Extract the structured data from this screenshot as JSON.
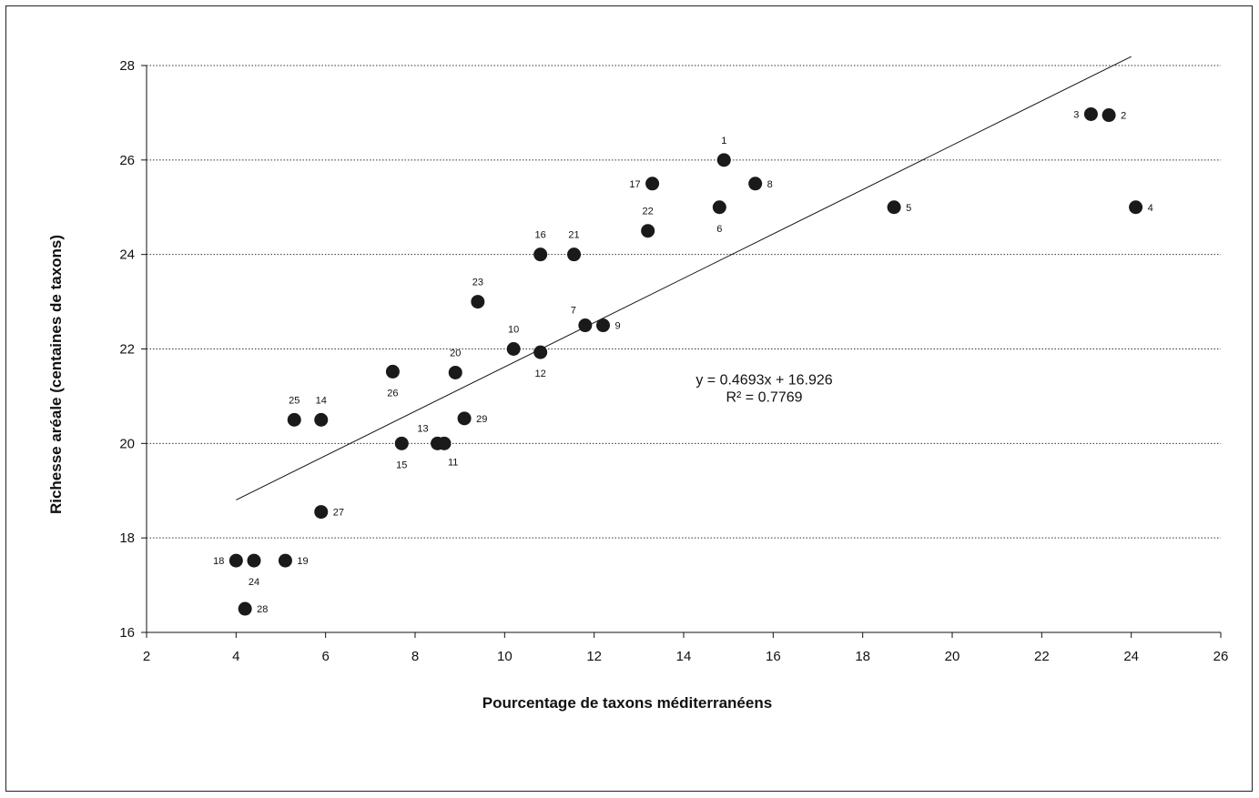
{
  "chart_data": {
    "type": "scatter",
    "title": "",
    "xlabel": "Pourcentage de taxons méditerranéens",
    "ylabel": "Richesse aréale (centaines de taxons)",
    "xlim": [
      2,
      26
    ],
    "ylim": [
      16,
      28
    ],
    "x_ticks": [
      2,
      4,
      6,
      8,
      10,
      12,
      14,
      16,
      18,
      20,
      22,
      24,
      26
    ],
    "y_ticks": [
      16,
      18,
      20,
      22,
      24,
      26,
      28
    ],
    "grid": "horizontal-dotted",
    "marker_color": "#1a1a1a",
    "points": [
      {
        "label": "1",
        "x": 14.9,
        "y": 26.0,
        "label_pos": "above"
      },
      {
        "label": "2",
        "x": 23.5,
        "y": 26.95,
        "label_pos": "right"
      },
      {
        "label": "3",
        "x": 23.1,
        "y": 26.97,
        "label_pos": "left"
      },
      {
        "label": "4",
        "x": 24.1,
        "y": 25.0,
        "label_pos": "right"
      },
      {
        "label": "5",
        "x": 18.7,
        "y": 25.0,
        "label_pos": "right"
      },
      {
        "label": "6",
        "x": 14.8,
        "y": 25.0,
        "label_pos": "below"
      },
      {
        "label": "7",
        "x": 11.8,
        "y": 22.5,
        "label_pos": "above-left"
      },
      {
        "label": "8",
        "x": 15.6,
        "y": 25.5,
        "label_pos": "right"
      },
      {
        "label": "9",
        "x": 12.2,
        "y": 22.5,
        "label_pos": "right"
      },
      {
        "label": "10",
        "x": 10.2,
        "y": 22.0,
        "label_pos": "above"
      },
      {
        "label": "11",
        "x": 8.65,
        "y": 20.0,
        "label_pos": "below-right"
      },
      {
        "label": "12",
        "x": 10.8,
        "y": 21.93,
        "label_pos": "below"
      },
      {
        "label": "13",
        "x": 8.5,
        "y": 20.0,
        "label_pos": "above-left"
      },
      {
        "label": "14",
        "x": 5.9,
        "y": 20.5,
        "label_pos": "above"
      },
      {
        "label": "15",
        "x": 7.7,
        "y": 20.0,
        "label_pos": "below"
      },
      {
        "label": "16",
        "x": 10.8,
        "y": 24.0,
        "label_pos": "above"
      },
      {
        "label": "17",
        "x": 13.3,
        "y": 25.5,
        "label_pos": "left"
      },
      {
        "label": "18",
        "x": 4.0,
        "y": 17.52,
        "label_pos": "left"
      },
      {
        "label": "19",
        "x": 5.1,
        "y": 17.52,
        "label_pos": "right"
      },
      {
        "label": "20",
        "x": 8.9,
        "y": 21.5,
        "label_pos": "above"
      },
      {
        "label": "21",
        "x": 11.55,
        "y": 24.0,
        "label_pos": "above"
      },
      {
        "label": "22",
        "x": 13.2,
        "y": 24.5,
        "label_pos": "above"
      },
      {
        "label": "23",
        "x": 9.4,
        "y": 23.0,
        "label_pos": "above"
      },
      {
        "label": "24",
        "x": 4.4,
        "y": 17.52,
        "label_pos": "below"
      },
      {
        "label": "25",
        "x": 5.3,
        "y": 20.5,
        "label_pos": "above"
      },
      {
        "label": "26",
        "x": 7.5,
        "y": 21.52,
        "label_pos": "below"
      },
      {
        "label": "27",
        "x": 5.9,
        "y": 18.55,
        "label_pos": "right"
      },
      {
        "label": "28",
        "x": 4.2,
        "y": 16.5,
        "label_pos": "right"
      },
      {
        "label": "29",
        "x": 9.1,
        "y": 20.53,
        "label_pos": "right"
      }
    ],
    "trendline": {
      "slope": 0.4693,
      "intercept": 16.926,
      "x_range": [
        4,
        24
      ],
      "equation_text": "y = 0.4693x + 16.926",
      "r2_text": "R² = 0.7769"
    }
  }
}
